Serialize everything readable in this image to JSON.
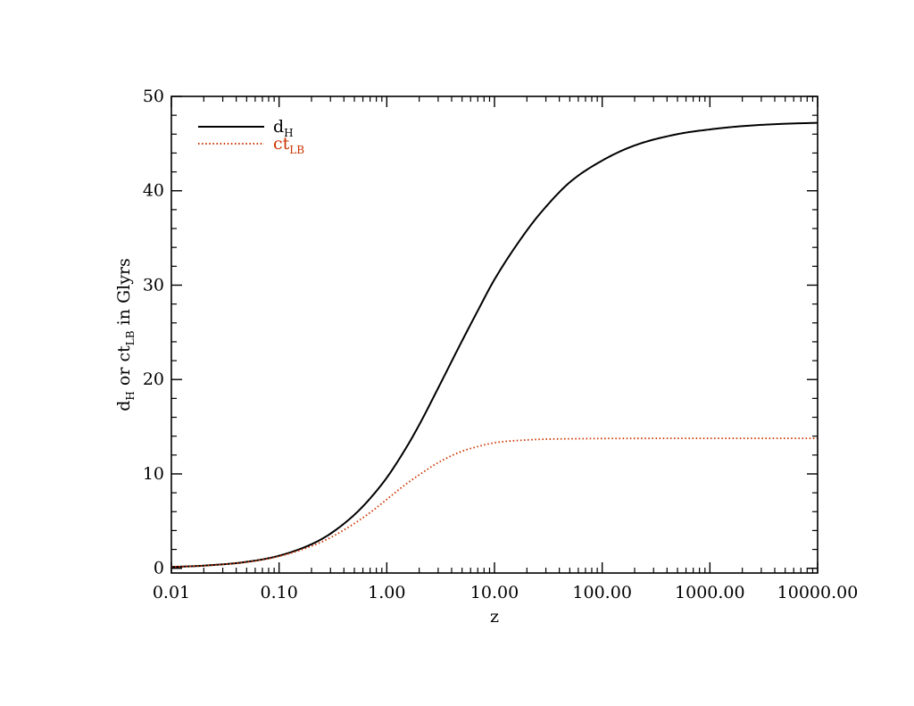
{
  "chart_data": {
    "type": "line",
    "xlabel": "z",
    "ylabel": {
      "parts": [
        "d",
        "H",
        " or ct",
        "LB",
        " in Glyrs"
      ]
    },
    "x_scale": "log",
    "xlim": [
      0.01,
      10000
    ],
    "ylim": [
      -0.5,
      50
    ],
    "x_ticks": [
      0.01,
      0.1,
      1,
      10,
      100,
      1000,
      10000
    ],
    "x_tick_labels": [
      "0.01",
      "0.10",
      "1.00",
      "10.00",
      "100.00",
      "1000.00",
      "10000.00"
    ],
    "y_ticks": [
      0,
      10,
      20,
      30,
      40,
      50
    ],
    "y_tick_labels": [
      "0",
      "10",
      "20",
      "30",
      "40",
      "50"
    ],
    "grid": false,
    "legend_position": "top-left",
    "x": [
      0.01,
      0.02,
      0.05,
      0.1,
      0.2,
      0.3,
      0.5,
      0.7,
      1,
      1.5,
      2,
      3,
      5,
      7,
      10,
      20,
      30,
      50,
      100,
      200,
      500,
      1000,
      2000,
      5000,
      10000
    ],
    "series": [
      {
        "name": "d",
        "name_subscript": "H",
        "style": "solid",
        "color": "#000000",
        "values": [
          0.14,
          0.28,
          0.68,
          1.33,
          2.55,
          3.67,
          5.67,
          7.4,
          9.6,
          12.7,
          15.2,
          19.1,
          24.1,
          27.3,
          30.6,
          35.8,
          38.3,
          40.9,
          43.2,
          44.8,
          46.0,
          46.5,
          46.85,
          47.1,
          47.2
        ]
      },
      {
        "name": "ct",
        "name_subscript": "LB",
        "style": "dotted",
        "color": "#cc3300",
        "values": [
          0.14,
          0.27,
          0.66,
          1.27,
          2.35,
          3.25,
          4.75,
          5.9,
          7.3,
          8.9,
          9.9,
          11.2,
          12.4,
          12.9,
          13.3,
          13.6,
          13.68,
          13.72,
          13.75,
          13.76,
          13.77,
          13.77,
          13.77,
          13.77,
          13.77
        ]
      }
    ]
  }
}
